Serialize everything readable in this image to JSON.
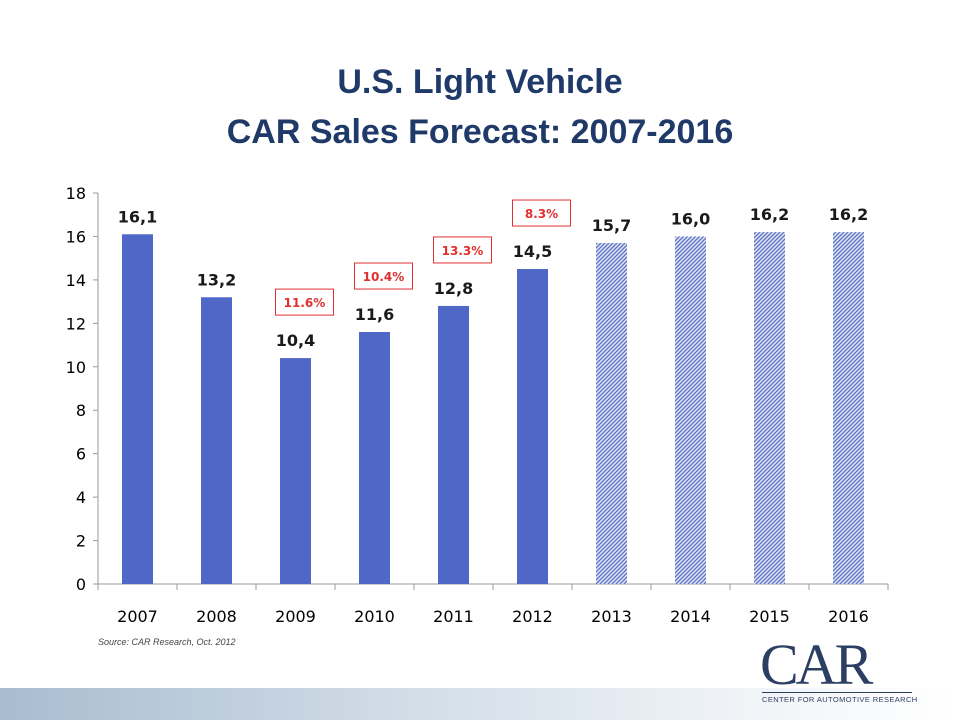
{
  "chart_data": {
    "type": "bar",
    "title": "U.S. Light Vehicle",
    "subtitle": "CAR Sales Forecast: 2007-2016",
    "categories": [
      "2007",
      "2008",
      "2009",
      "2010",
      "2011",
      "2012",
      "2013",
      "2014",
      "2015",
      "2016"
    ],
    "values": [
      16.1,
      13.2,
      10.4,
      11.6,
      12.8,
      14.5,
      15.7,
      16.0,
      16.2,
      16.2
    ],
    "data_labels": [
      "16,1",
      "13,2",
      "10,4",
      "11,6",
      "12,8",
      "14,5",
      "15,7",
      "16,0",
      "16,2",
      "16,2"
    ],
    "forecast": [
      false,
      false,
      false,
      false,
      false,
      false,
      true,
      true,
      true,
      true
    ],
    "ylim": [
      0,
      18
    ],
    "yticks": [
      0,
      2,
      4,
      6,
      8,
      10,
      12,
      14,
      16,
      18
    ],
    "xlabel": "",
    "ylabel": "",
    "grid": false,
    "growth_callouts": [
      {
        "text": "11.6%",
        "category": "2009"
      },
      {
        "text": "10.4%",
        "category": "2010"
      },
      {
        "text": "13.3%",
        "category": "2011"
      },
      {
        "text": "8.3%",
        "category": "2012"
      }
    ],
    "colors": {
      "bar": "#4f67c6",
      "forecast_bar": "#6b80c8",
      "callout_border": "#e03030",
      "callout_text": "#e03030",
      "axis": "#9a9a9a",
      "title": "#1f3a68"
    }
  },
  "source": "Source: CAR Research, Oct. 2012",
  "logo": {
    "text": "CAR",
    "subtitle": "CENTER FOR AUTOMOTIVE RESEARCH"
  }
}
